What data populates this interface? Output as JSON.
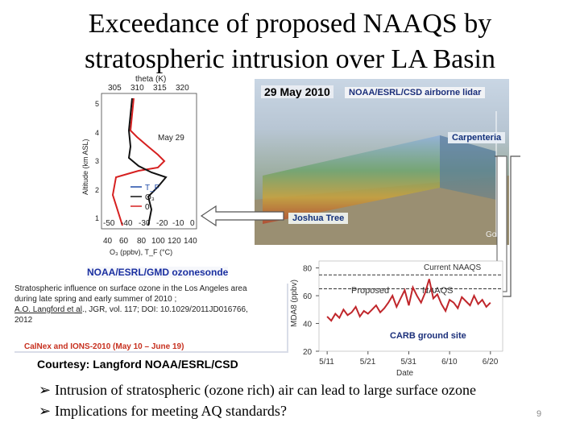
{
  "slide": {
    "title_line1": "Exceedance of proposed NAAQS by",
    "title_line2": "stratospheric intrusion over LA Basin",
    "page_number": "9"
  },
  "sonde_plot": {
    "theta_label": "theta (K)",
    "theta_ticks": [
      "305",
      "310",
      "315",
      "320"
    ],
    "ylabel": "Altitude (km ASL)",
    "y_ticks": [
      "5",
      "4",
      "3",
      "2",
      "1"
    ],
    "date_label": "May 29",
    "legend": [
      "T_F",
      "O₃",
      "0"
    ],
    "bottom_ticks_top": [
      "-50",
      "-40",
      "-30",
      "-20",
      "-10",
      "0"
    ],
    "bottom_ticks_bottom": [
      "40",
      "60",
      "80",
      "100",
      "120",
      "140"
    ],
    "xlabel": "O₃ (ppbv), T_F (°C)",
    "colors": {
      "ozone": "#111111",
      "temperature": "#d62020",
      "legend_blue": "#1f4aa8"
    }
  },
  "lidar": {
    "date": "29 May 2010",
    "source": "NOAA/ESRL/CSD airborne lidar",
    "carpenteria": "Carpenteria",
    "joshua_tree": "Joshua Tree",
    "watermark": "Goo"
  },
  "ozonesonde_label": "NOAA/ESRL/GMD ozonesonde",
  "reference": {
    "line1": "Stratospheric influence on surface ozone in the Los Angeles area",
    "line2": "during late spring and early summer of 2010 ;",
    "authors": "A.O. Langford et al",
    "line3_rest": "., JGR, vol. 117; DOI: 10.1029/2011JD016766,",
    "line4": "2012",
    "campaign": "CalNex and IONS-2010 (May 10 – June 19)"
  },
  "chart_data": {
    "type": "line",
    "ylabel": "MDA8 (ppbv)",
    "xlabel": "Date",
    "y_ticks": [
      20,
      40,
      60,
      80
    ],
    "ylim": [
      20,
      85
    ],
    "x_ticks": [
      "5/11",
      "5/21",
      "5/31",
      "6/10",
      "6/20"
    ],
    "x_tick_days": [
      0,
      10,
      20,
      30,
      40
    ],
    "xlim": [
      -2,
      43
    ],
    "current_naaqs_label": "Current NAAQS",
    "current_naaqs_value": 75,
    "proposed_label": "Proposed",
    "naaqs_label": "NAAQS",
    "proposed_value": 65,
    "site_label": "CARB ground site",
    "series": [
      {
        "name": "",
        "days": [
          0,
          1,
          2,
          3,
          4,
          5,
          6,
          7,
          8,
          9,
          10,
          11,
          12,
          13,
          14,
          15,
          16,
          17,
          18,
          19,
          20,
          21,
          22,
          23,
          24,
          25,
          26,
          27,
          28,
          29,
          30,
          31,
          32,
          33,
          34,
          35,
          36,
          37,
          38,
          39,
          40
        ],
        "values": [
          45,
          42,
          47,
          44,
          50,
          46,
          48,
          52,
          45,
          49,
          47,
          50,
          53,
          48,
          51,
          55,
          60,
          52,
          58,
          64,
          53,
          66,
          60,
          55,
          62,
          72,
          58,
          61,
          54,
          49,
          57,
          55,
          51,
          59,
          56,
          53,
          60,
          54,
          57,
          52,
          55
        ]
      }
    ],
    "colors": {
      "series": "#c0262b",
      "naaqs": "#333333",
      "grid": "#cccccc"
    }
  },
  "courtesy": "Courtesy: Langford NOAA/ESRL/CSD",
  "bullets": [
    "Intrusion of stratospheric (ozone rich) air can lead to large surface ozone",
    "Implications for meeting AQ standards?"
  ]
}
